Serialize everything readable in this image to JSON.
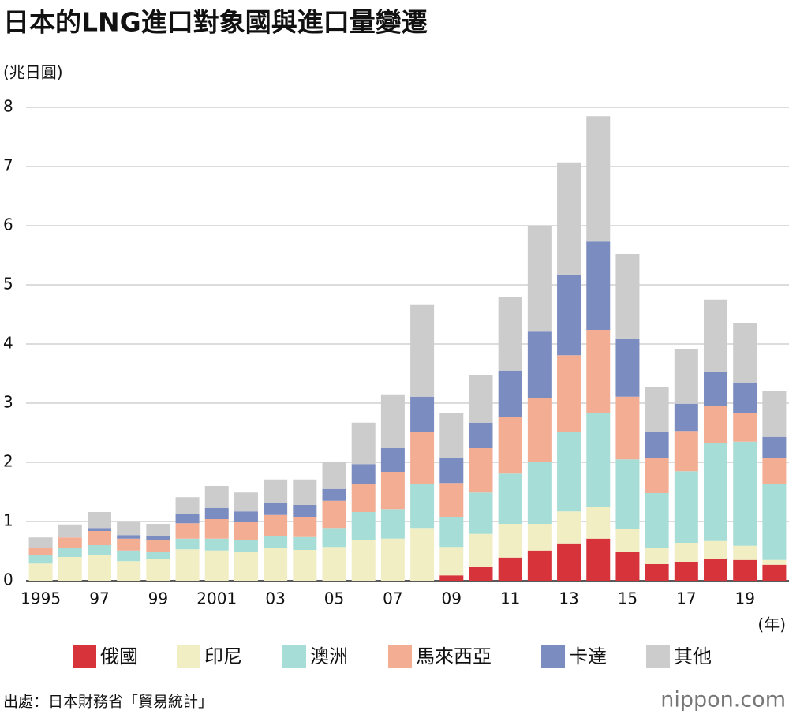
{
  "chart_data": {
    "type": "stacked_bar",
    "title": "日本的LNG進口對象國與進口量變遷",
    "y_axis_label": "(兆日圓)",
    "x_axis_label": "(年)",
    "source": "出處：日本財務省「貿易統計」",
    "logo": "nippon.com",
    "categories": [
      "1995",
      null,
      "97",
      null,
      "99",
      null,
      "2001",
      null,
      "03",
      null,
      "05",
      null,
      "07",
      null,
      "09",
      null,
      "11",
      null,
      "13",
      null,
      "15",
      null,
      "17",
      null,
      "19",
      null
    ],
    "ylim": [
      0,
      8
    ],
    "yticks": [
      0,
      1,
      2,
      3,
      4,
      5,
      6,
      7,
      8
    ],
    "grid": true,
    "series": [
      {
        "name": "俄國",
        "color": "#d7333a",
        "values": [
          0,
          0,
          0,
          0,
          0,
          0,
          0,
          0,
          0,
          0,
          0,
          0,
          0,
          0,
          0.09,
          0.24,
          0.39,
          0.51,
          0.63,
          0.71,
          0.48,
          0.28,
          0.32,
          0.36,
          0.35,
          0.27
        ]
      },
      {
        "name": "印尼",
        "color": "#f2eec4",
        "values": [
          0.29,
          0.4,
          0.43,
          0.33,
          0.36,
          0.53,
          0.51,
          0.49,
          0.55,
          0.52,
          0.57,
          0.69,
          0.71,
          0.89,
          0.48,
          0.55,
          0.57,
          0.45,
          0.54,
          0.54,
          0.4,
          0.28,
          0.32,
          0.31,
          0.24,
          0.08
        ]
      },
      {
        "name": "澳洲",
        "color": "#a6ddd6",
        "values": [
          0.14,
          0.16,
          0.17,
          0.18,
          0.13,
          0.18,
          0.2,
          0.19,
          0.21,
          0.23,
          0.32,
          0.47,
          0.5,
          0.74,
          0.51,
          0.7,
          0.85,
          1.04,
          1.35,
          1.59,
          1.17,
          0.92,
          1.21,
          1.66,
          1.76,
          1.29
        ]
      },
      {
        "name": "馬來西亞",
        "color": "#f2ad93",
        "values": [
          0.13,
          0.17,
          0.24,
          0.2,
          0.19,
          0.26,
          0.33,
          0.32,
          0.35,
          0.33,
          0.46,
          0.47,
          0.63,
          0.89,
          0.57,
          0.75,
          0.96,
          1.08,
          1.29,
          1.4,
          1.06,
          0.6,
          0.68,
          0.62,
          0.49,
          0.43
        ]
      },
      {
        "name": "卡達",
        "color": "#7b8cc0",
        "values": [
          0,
          0,
          0.05,
          0.06,
          0.08,
          0.16,
          0.19,
          0.17,
          0.2,
          0.2,
          0.2,
          0.34,
          0.4,
          0.59,
          0.43,
          0.43,
          0.78,
          1.13,
          1.36,
          1.49,
          0.97,
          0.43,
          0.46,
          0.57,
          0.51,
          0.36
        ]
      },
      {
        "name": "其他",
        "color": "#cccccc",
        "values": [
          0.17,
          0.22,
          0.27,
          0.24,
          0.2,
          0.28,
          0.37,
          0.32,
          0.4,
          0.43,
          0.45,
          0.7,
          0.91,
          1.56,
          0.75,
          0.81,
          1.24,
          1.79,
          1.9,
          2.12,
          1.44,
          0.77,
          0.93,
          1.23,
          1.01,
          0.78
        ]
      }
    ]
  }
}
